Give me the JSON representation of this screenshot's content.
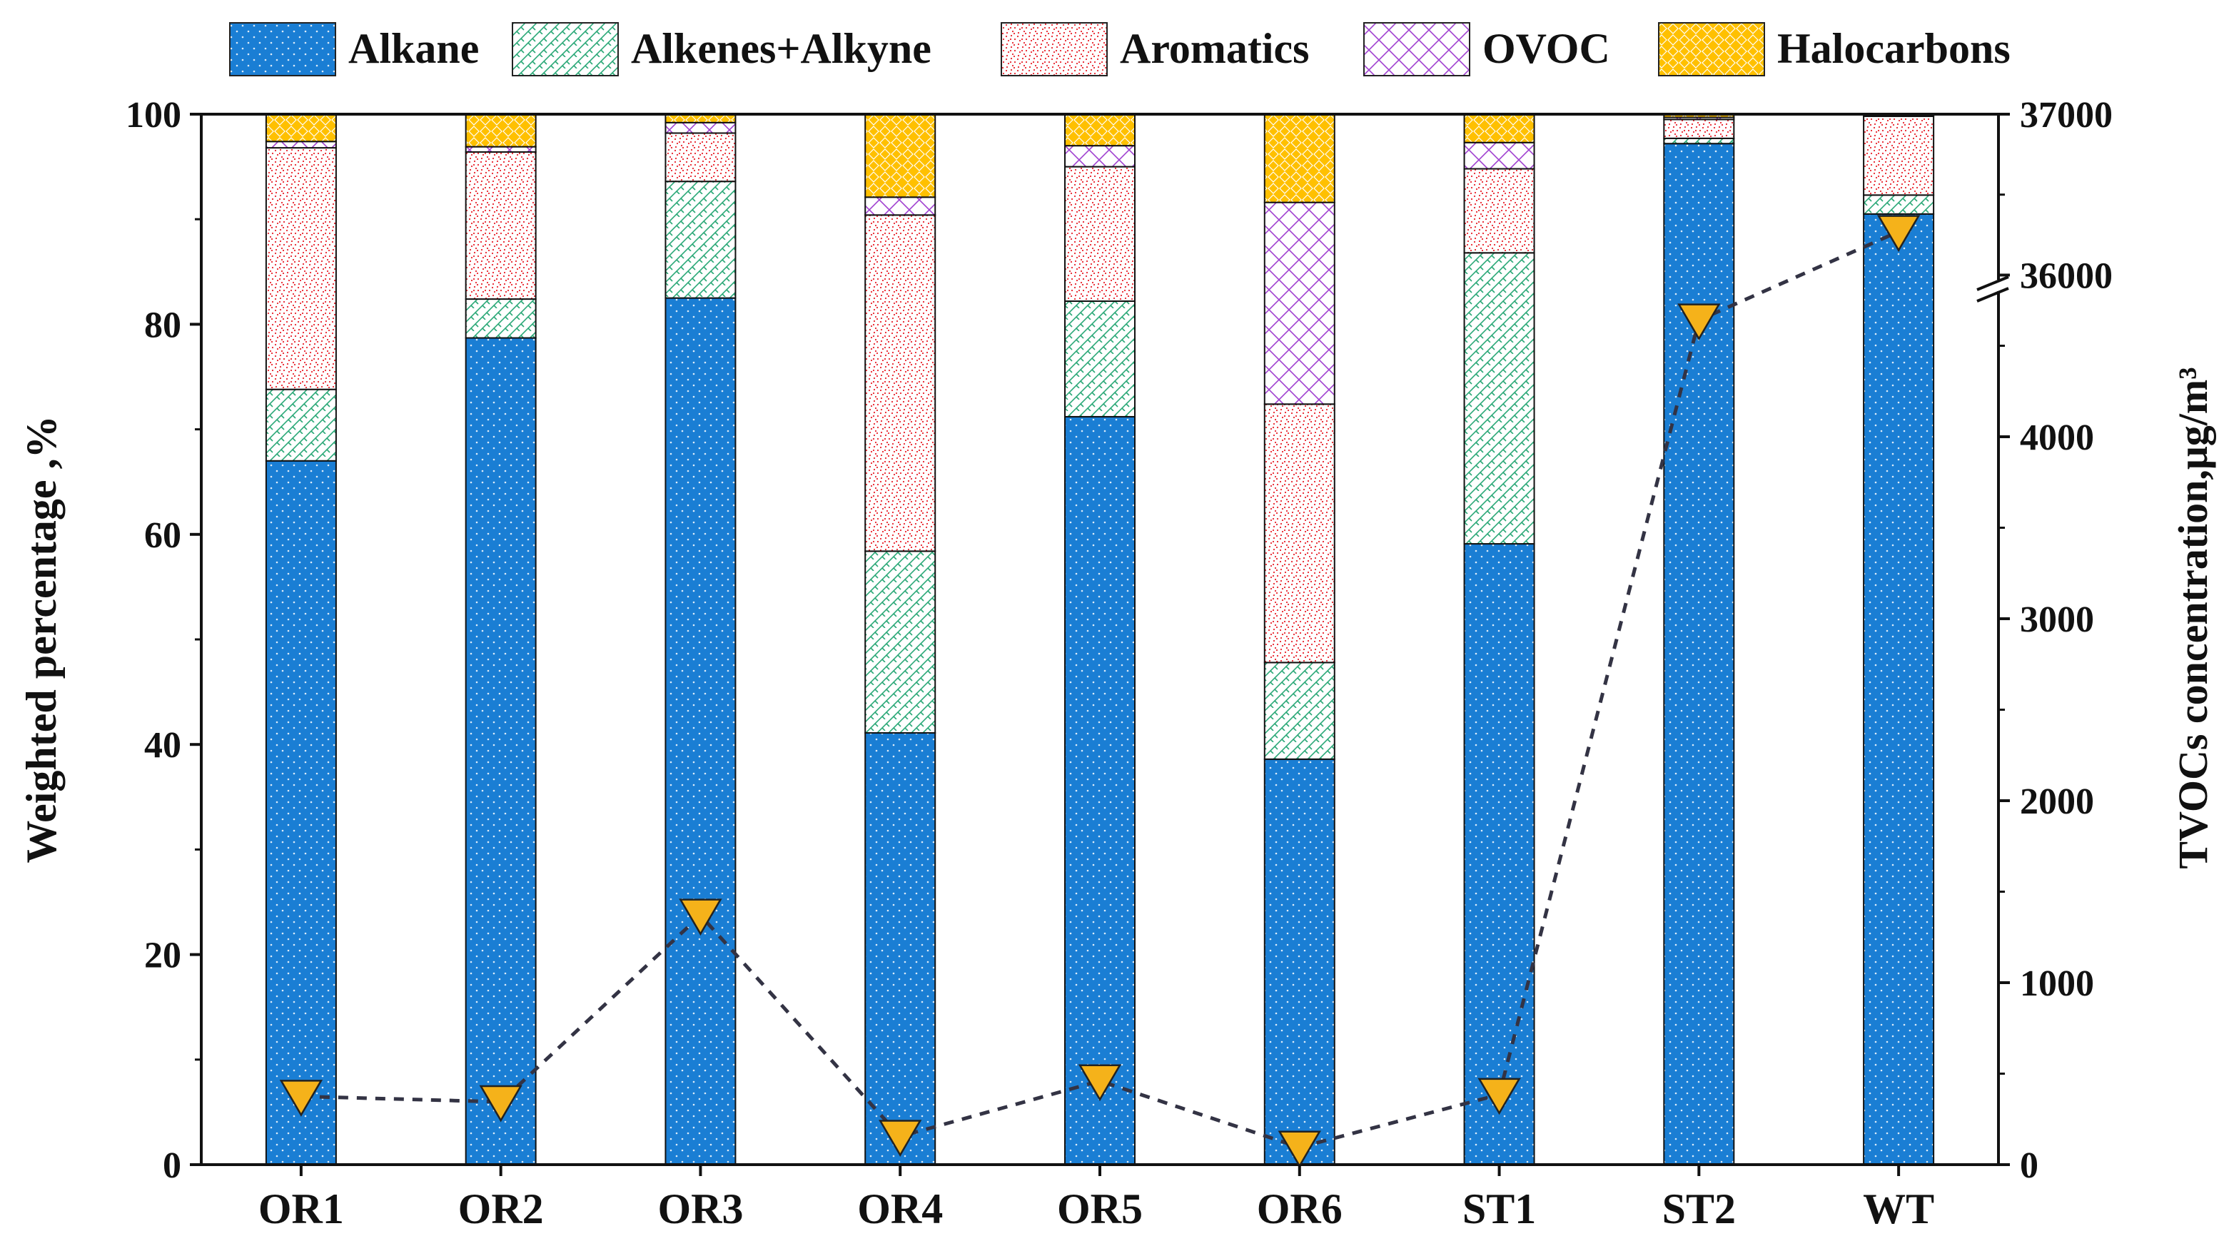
{
  "chart_data": {
    "type": "bar",
    "stacked": true,
    "categories": [
      "OR1",
      "OR2",
      "OR3",
      "OR4",
      "OR5",
      "OR6",
      "ST1",
      "ST2",
      "WT"
    ],
    "series": [
      {
        "name": "Alkane",
        "color": "#1a7ed4",
        "pattern": "dots",
        "values": [
          67.0,
          78.7,
          82.5,
          41.1,
          71.2,
          38.6,
          59.1,
          97.2,
          90.5
        ]
      },
      {
        "name": "Alkenes+Alkyne",
        "color": "#2aa877",
        "pattern": "bricks",
        "values": [
          6.8,
          3.7,
          11.1,
          17.3,
          11.0,
          9.2,
          27.7,
          0.5,
          1.8
        ]
      },
      {
        "name": "Aromatics",
        "color": "#e8232c",
        "pattern": "speckle",
        "values": [
          23.0,
          14.0,
          4.6,
          32.0,
          12.8,
          24.6,
          8.0,
          1.8,
          7.5
        ]
      },
      {
        "name": "OVOC",
        "color": "#a040d0",
        "pattern": "crosshatch",
        "values": [
          0.6,
          0.5,
          1.0,
          1.7,
          2.0,
          19.2,
          2.5,
          0.2,
          0.1
        ]
      },
      {
        "name": "Halocarbons",
        "color": "#ffc000",
        "pattern": "diamonds",
        "values": [
          2.6,
          3.1,
          0.8,
          7.9,
          3.0,
          8.4,
          2.7,
          0.3,
          0.1
        ]
      }
    ],
    "line_series": {
      "name": "TVOCs concentration",
      "axis": "right",
      "values": [
        375,
        345,
        1370,
        155,
        460,
        95,
        385,
        35720,
        36270
      ]
    },
    "ylabel_left": "Weighted percentage ,%",
    "ylabel_right": "TVOCs concentration,μg/m³",
    "ylim_left": [
      0,
      100
    ],
    "yticks_left": [
      "0",
      "20",
      "40",
      "60",
      "80",
      "100"
    ],
    "ylim_right_lower": [
      0,
      4800
    ],
    "ylim_right_upper": [
      35900,
      37000
    ],
    "yticks_right": [
      "0",
      "1000",
      "2000",
      "3000",
      "4000",
      "36000",
      "37000"
    ],
    "right_axis_break": true,
    "legend_position": "top"
  }
}
